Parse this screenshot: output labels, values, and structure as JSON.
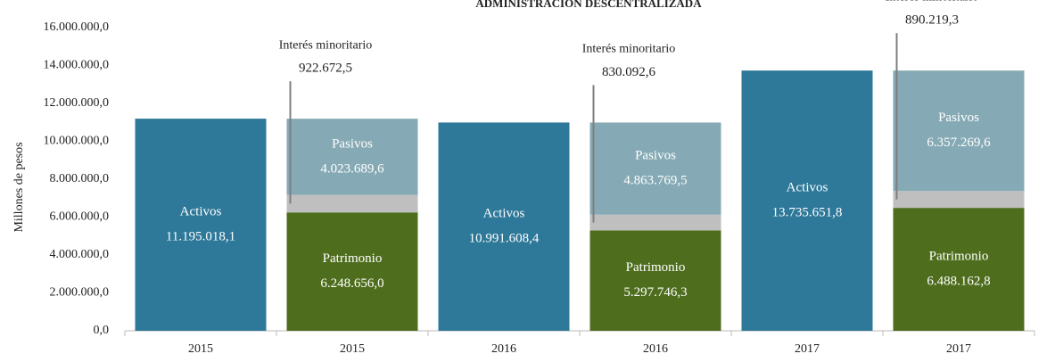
{
  "chart_data": {
    "type": "stacked_bar",
    "title": "ADMINISTRACIÓN DESCENTRALIZADA",
    "y_label": "Millones  de pesos",
    "categories": [
      "2015",
      "2015",
      "2016",
      "2016",
      "2017",
      "2017"
    ],
    "series": [
      {
        "name": "Activos",
        "color": "#2e7899",
        "values": [
          11195018.1,
          null,
          10991608.4,
          null,
          13735651.8,
          null
        ],
        "value_labels": [
          "11.195.018,1",
          null,
          "10.991.608,4",
          null,
          "13.735.651,8",
          null
        ]
      },
      {
        "name": "Patrimonio",
        "color": "#4e6e1e",
        "values": [
          null,
          6248656.0,
          null,
          5297746.3,
          null,
          6488162.8
        ],
        "value_labels": [
          null,
          "6.248.656,0",
          null,
          "5.297.746,3",
          null,
          "6.488.162,8"
        ]
      },
      {
        "name": "Interés minoritario",
        "color": "#bfbfbf",
        "values": [
          null,
          922672.5,
          null,
          830092.6,
          null,
          890219.3
        ],
        "value_labels": [
          null,
          "922.672,5",
          null,
          "830.092,6",
          null,
          "890.219,3"
        ]
      },
      {
        "name": "Pasivos",
        "color": "#86aab5",
        "values": [
          null,
          4023689.6,
          null,
          4863769.5,
          null,
          6357269.6
        ],
        "value_labels": [
          null,
          "4.023.689,6",
          null,
          "4.863.769,5",
          null,
          "6.357.269,6"
        ]
      }
    ],
    "ylim": [
      0,
      16000000
    ],
    "yticks": [
      {
        "value": 0,
        "label": "0,0"
      },
      {
        "value": 2000000,
        "label": "2.000.000,0"
      },
      {
        "value": 4000000,
        "label": "4.000.000,0"
      },
      {
        "value": 6000000,
        "label": "6.000.000,0"
      },
      {
        "value": 8000000,
        "label": "8.000.000,0"
      },
      {
        "value": 10000000,
        "label": "10.000.000,0"
      },
      {
        "value": 12000000,
        "label": "12.000.000,0"
      },
      {
        "value": 14000000,
        "label": "14.000.000,0"
      },
      {
        "value": 16000000,
        "label": "16.000.000,0"
      }
    ]
  }
}
